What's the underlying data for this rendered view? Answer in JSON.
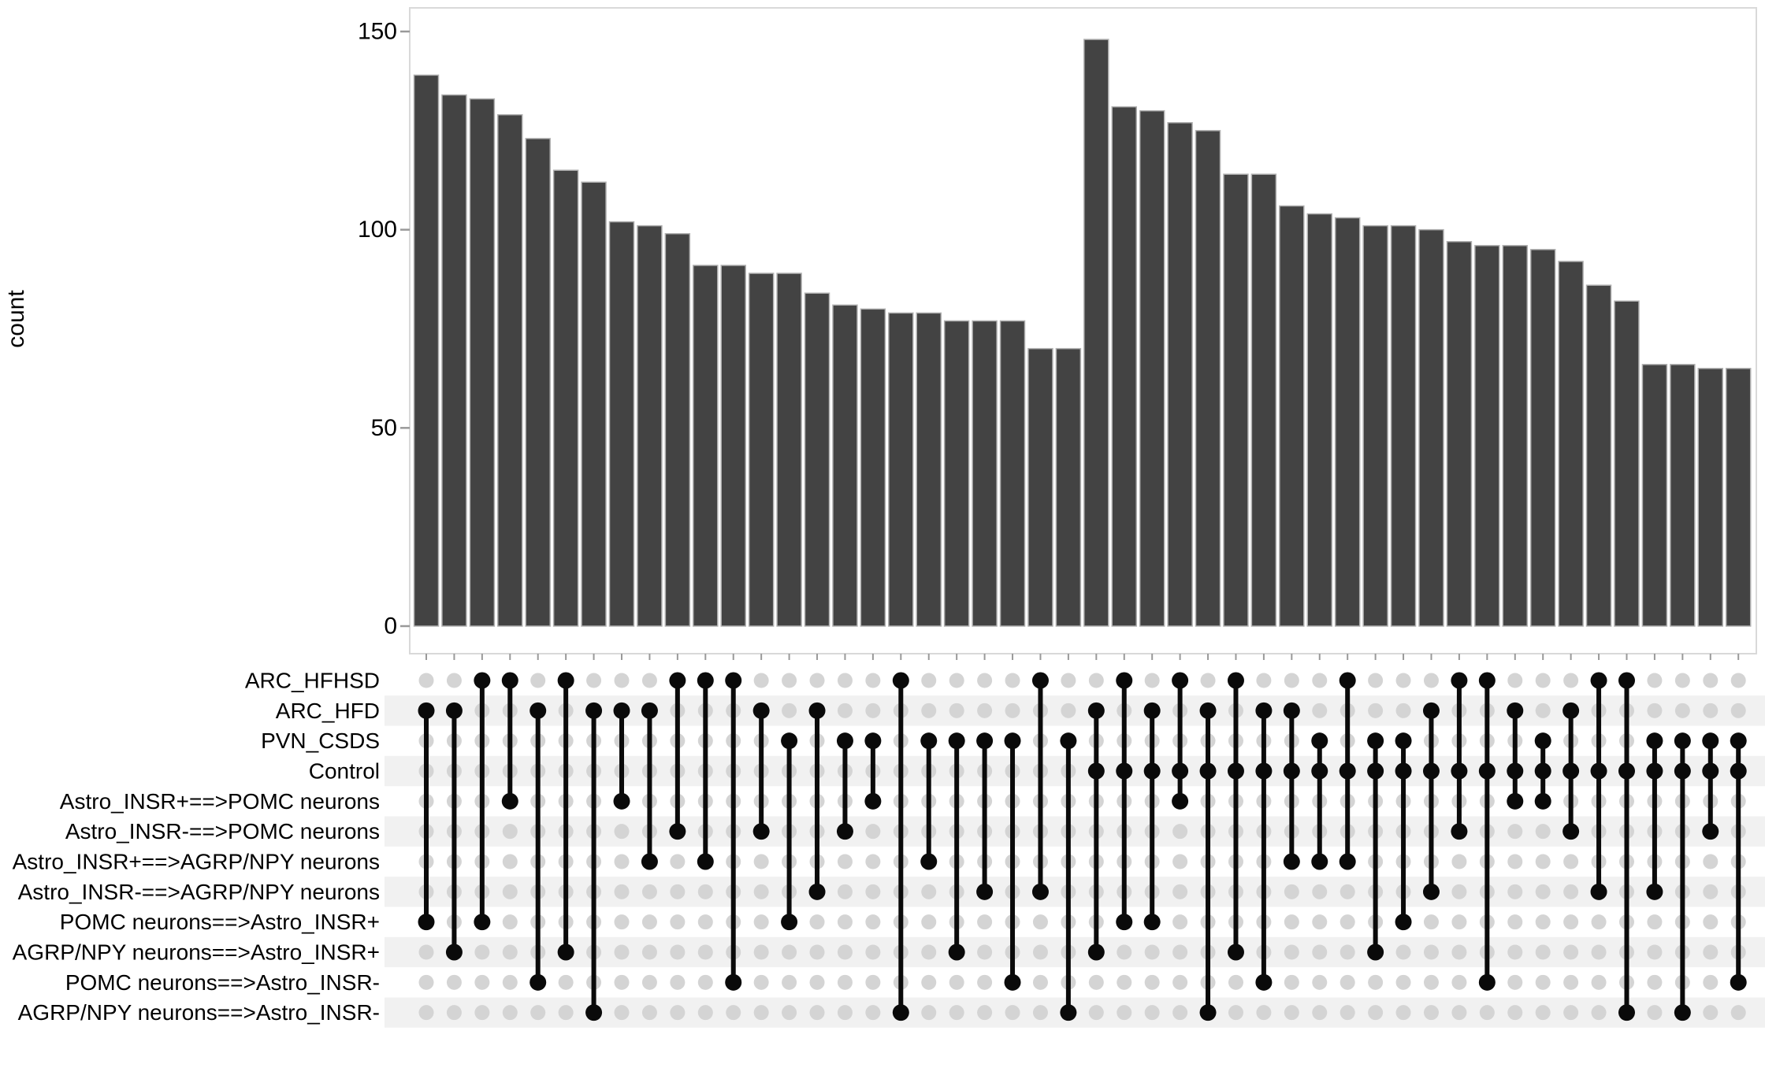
{
  "chart_data": {
    "type": "bar",
    "subtype": "upset-intersection-plot",
    "title": "",
    "xlabel": "",
    "ylabel": "count",
    "yticks": [
      0,
      50,
      100,
      150
    ],
    "ylim": [
      0,
      155
    ],
    "legend": "none",
    "grid": "off",
    "sets": [
      "ARC_HFHSD",
      "ARC_HFD",
      "PVN_CSDS",
      "Control",
      "Astro_INSR+==>POMC neurons",
      "Astro_INSR-==>POMC neurons",
      "Astro_INSR+==>AGRP/NPY neurons",
      "Astro_INSR-==>AGRP/NPY neurons",
      "POMC neurons==>Astro_INSR+",
      "AGRP/NPY neurons==>Astro_INSR+",
      "POMC neurons==>Astro_INSR-",
      "AGRP/NPY neurons==>Astro_INSR-"
    ],
    "intersections": [
      {
        "value": 139,
        "members": [
          1,
          8
        ]
      },
      {
        "value": 134,
        "members": [
          1,
          9
        ]
      },
      {
        "value": 133,
        "members": [
          0,
          8
        ]
      },
      {
        "value": 129,
        "members": [
          0,
          4
        ]
      },
      {
        "value": 123,
        "members": [
          1,
          10
        ]
      },
      {
        "value": 115,
        "members": [
          0,
          9
        ]
      },
      {
        "value": 112,
        "members": [
          1,
          11
        ]
      },
      {
        "value": 102,
        "members": [
          1,
          4
        ]
      },
      {
        "value": 101,
        "members": [
          1,
          6
        ]
      },
      {
        "value": 99,
        "members": [
          0,
          5
        ]
      },
      {
        "value": 91,
        "members": [
          0,
          6
        ]
      },
      {
        "value": 91,
        "members": [
          0,
          10
        ]
      },
      {
        "value": 89,
        "members": [
          1,
          5
        ]
      },
      {
        "value": 89,
        "members": [
          2,
          8
        ]
      },
      {
        "value": 84,
        "members": [
          1,
          7
        ]
      },
      {
        "value": 81,
        "members": [
          2,
          5
        ]
      },
      {
        "value": 80,
        "members": [
          2,
          4
        ]
      },
      {
        "value": 79,
        "members": [
          0,
          11
        ]
      },
      {
        "value": 79,
        "members": [
          2,
          6
        ]
      },
      {
        "value": 77,
        "members": [
          2,
          9
        ]
      },
      {
        "value": 77,
        "members": [
          2,
          7
        ]
      },
      {
        "value": 77,
        "members": [
          2,
          10
        ]
      },
      {
        "value": 70,
        "members": [
          0,
          7
        ]
      },
      {
        "value": 70,
        "members": [
          2,
          11
        ]
      },
      {
        "value": 148,
        "members": [
          1,
          3,
          9
        ]
      },
      {
        "value": 131,
        "members": [
          0,
          3,
          8
        ]
      },
      {
        "value": 130,
        "members": [
          1,
          3,
          8
        ]
      },
      {
        "value": 127,
        "members": [
          0,
          3,
          4
        ]
      },
      {
        "value": 125,
        "members": [
          1,
          3,
          11
        ]
      },
      {
        "value": 114,
        "members": [
          0,
          3,
          9
        ]
      },
      {
        "value": 114,
        "members": [
          1,
          3,
          10
        ]
      },
      {
        "value": 106,
        "members": [
          1,
          3,
          6
        ]
      },
      {
        "value": 104,
        "members": [
          2,
          3,
          6
        ]
      },
      {
        "value": 103,
        "members": [
          0,
          3,
          6
        ]
      },
      {
        "value": 101,
        "members": [
          2,
          3,
          9
        ]
      },
      {
        "value": 101,
        "members": [
          2,
          3,
          8
        ]
      },
      {
        "value": 100,
        "members": [
          1,
          3,
          7
        ]
      },
      {
        "value": 97,
        "members": [
          0,
          3,
          5
        ]
      },
      {
        "value": 96,
        "members": [
          0,
          3,
          10
        ]
      },
      {
        "value": 96,
        "members": [
          1,
          3,
          4
        ]
      },
      {
        "value": 95,
        "members": [
          2,
          3,
          4
        ]
      },
      {
        "value": 92,
        "members": [
          1,
          3,
          5
        ]
      },
      {
        "value": 86,
        "members": [
          0,
          3,
          7
        ]
      },
      {
        "value": 82,
        "members": [
          0,
          3,
          11
        ]
      },
      {
        "value": 66,
        "members": [
          2,
          3,
          7
        ]
      },
      {
        "value": 66,
        "members": [
          2,
          3,
          11
        ]
      },
      {
        "value": 65,
        "members": [
          2,
          3,
          5
        ]
      },
      {
        "value": 65,
        "members": [
          2,
          3,
          10
        ]
      }
    ],
    "colors": {
      "bar_fill": "#434343",
      "bar_stroke": "#b0b0b0",
      "dot_inactive": "#d4d4d4",
      "dot_active": "#0a0a0a",
      "connector": "#0a0a0a",
      "stripe": "#f1f1f1",
      "panel_border": "#d9d9d9",
      "axis_tick": "#999999",
      "text": "#000000",
      "background": "#ffffff"
    }
  }
}
